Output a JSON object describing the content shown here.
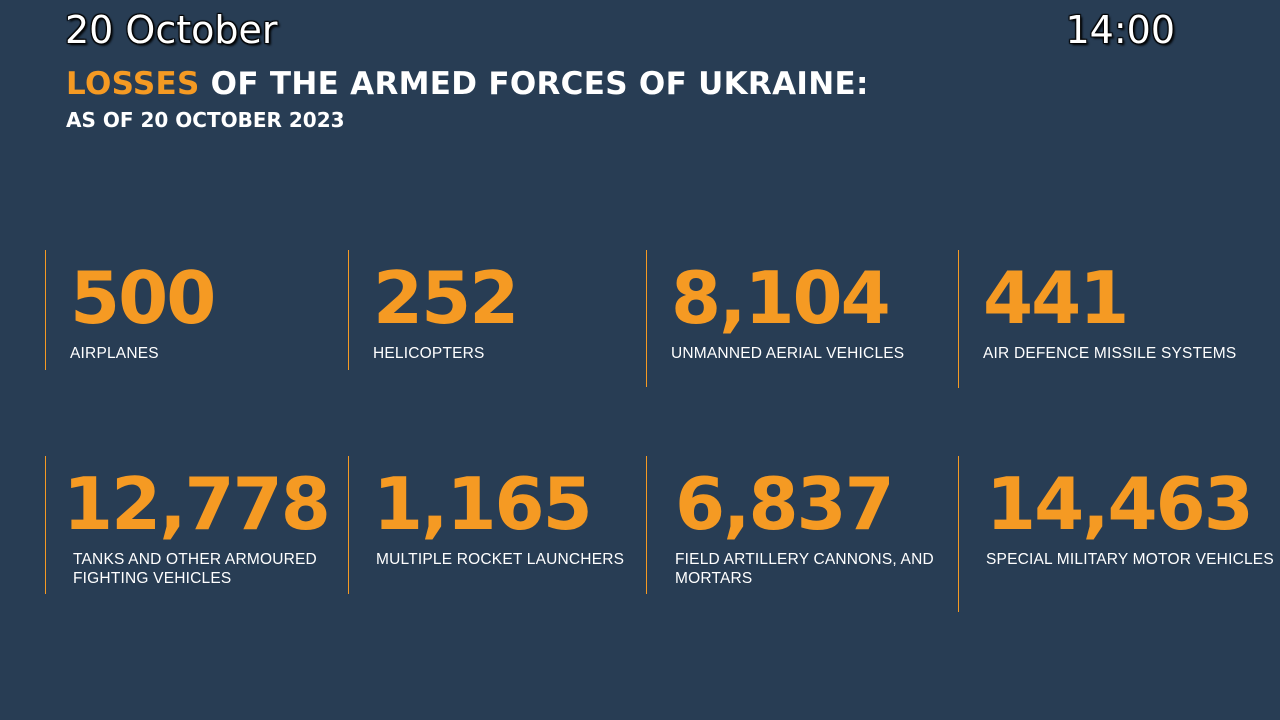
{
  "overlay": {
    "date": "20 October",
    "time": "14:00"
  },
  "header": {
    "title_accent": "LOSSES",
    "title_rest": "OF THE ARMED FORCES OF UKRAINE:",
    "subtitle": "AS OF 20 OCTOBER 2023"
  },
  "stats": [
    {
      "value": "500",
      "label": "AIRPLANES"
    },
    {
      "value": "252",
      "label": "HELICOPTERS"
    },
    {
      "value": "8,104",
      "label": "UNMANNED AERIAL VEHICLES"
    },
    {
      "value": "441",
      "label": "AIR DEFENCE MISSILE SYSTEMS"
    },
    {
      "value": "12,778",
      "label": "TANKS AND OTHER ARMOURED FIGHTING VEHICLES"
    },
    {
      "value": "1,165",
      "label": "MULTIPLE ROCKET LAUNCHERS"
    },
    {
      "value": "6,837",
      "label": "FIELD ARTILLERY CANNONS, AND MORTARS"
    },
    {
      "value": "14,463",
      "label": "SPECIAL MILITARY MOTOR VEHICLES"
    }
  ],
  "colors": {
    "background": "#283d54",
    "accent": "#f59a23",
    "text": "#ffffff"
  }
}
